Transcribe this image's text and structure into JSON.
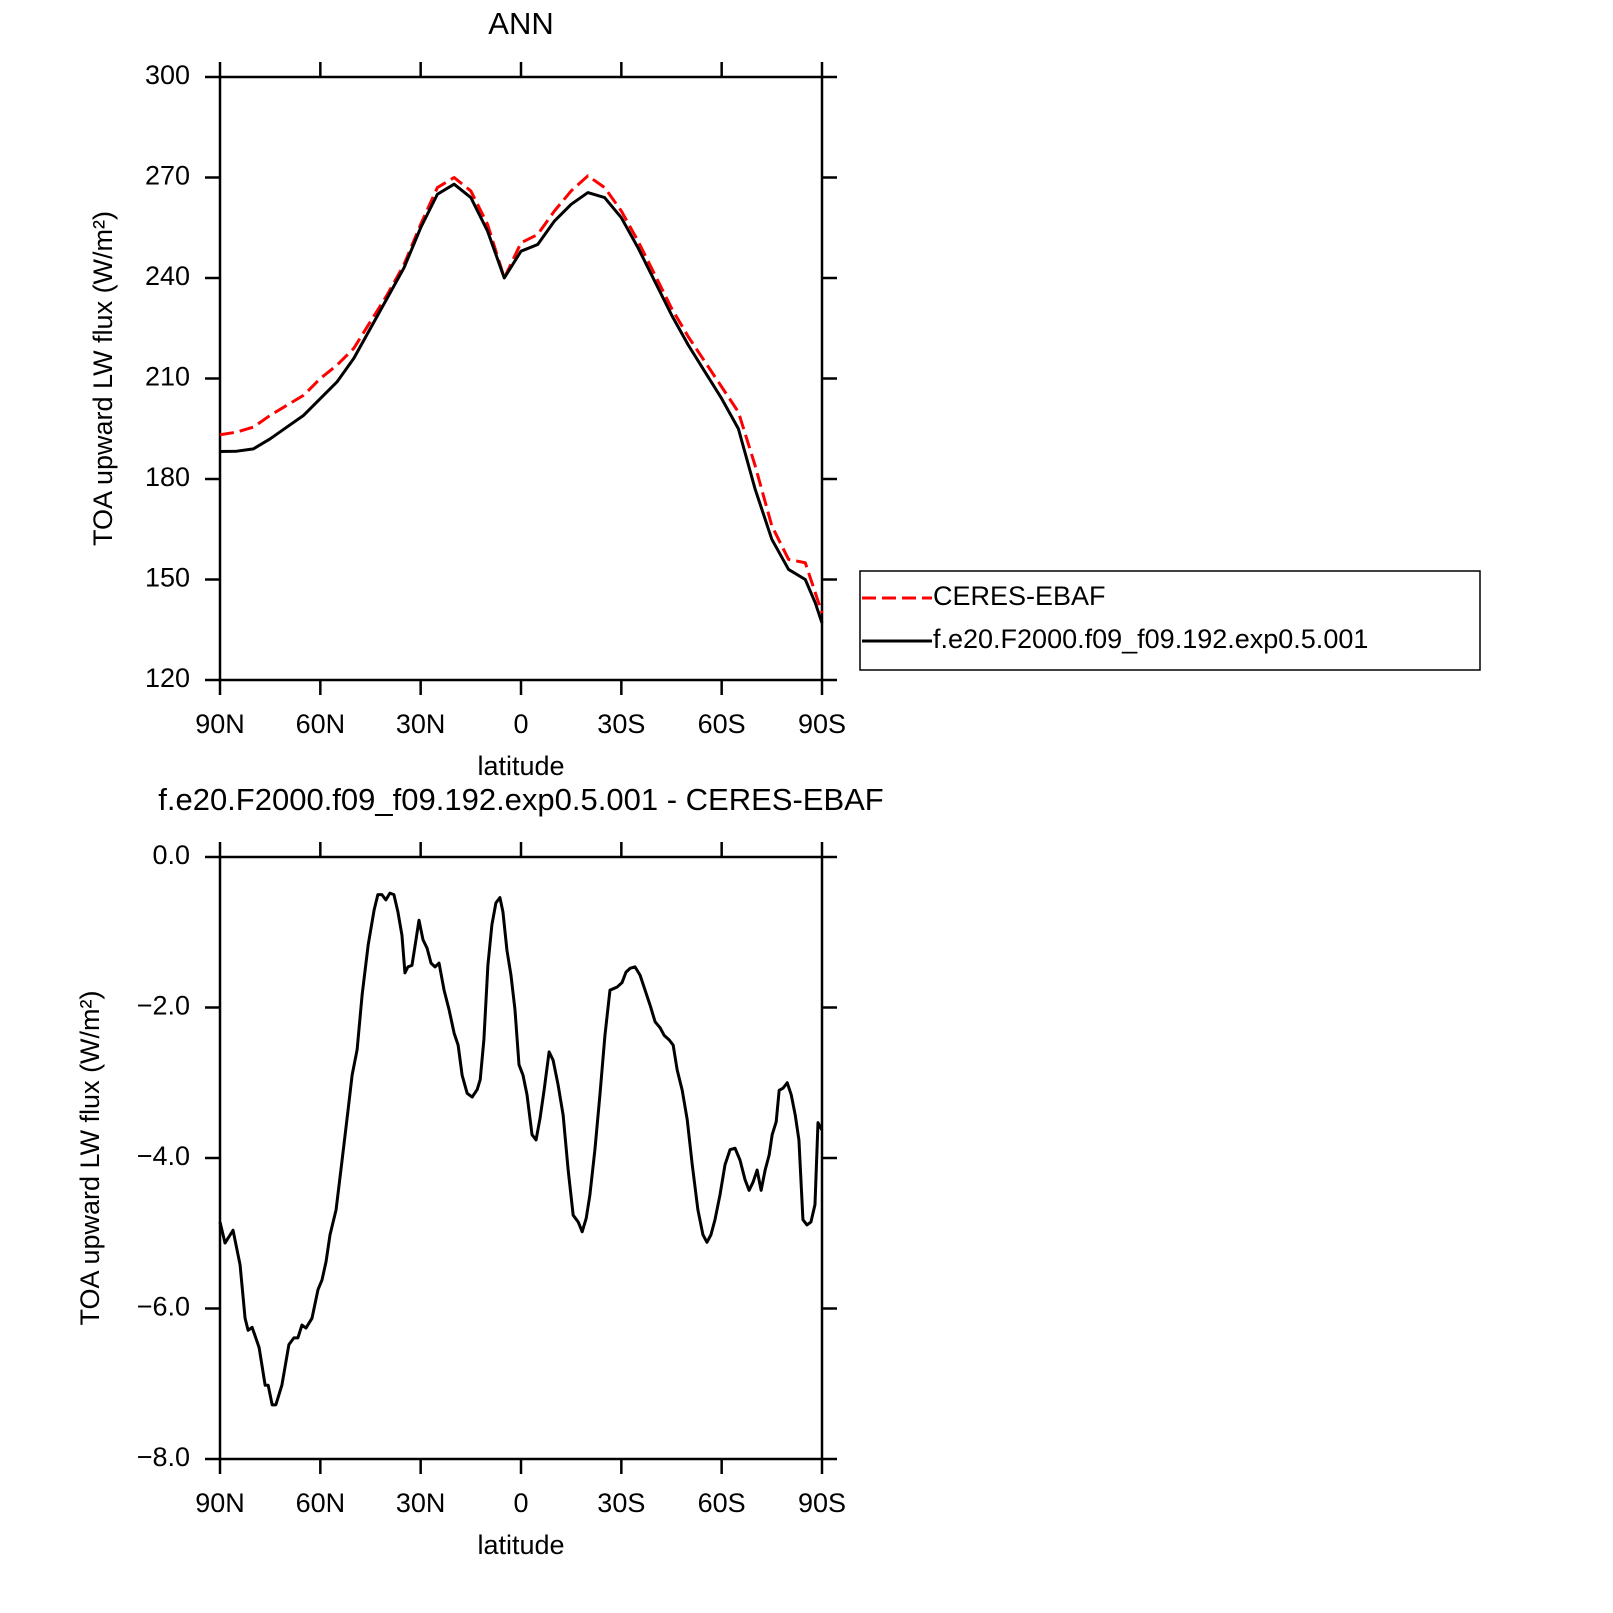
{
  "chart_data": [
    {
      "type": "line",
      "title": "ANN",
      "xlabel": "latitude",
      "ylabel": "TOA upward LW flux (W/m²)",
      "x": [
        90,
        85,
        80,
        75,
        70,
        65,
        60,
        55,
        50,
        45,
        40,
        35,
        30,
        25,
        20,
        15,
        10,
        5,
        0,
        -5,
        -10,
        -15,
        -20,
        -25,
        -30,
        -35,
        -40,
        -45,
        -50,
        -55,
        -60,
        -65,
        -70,
        -75,
        -80,
        -85,
        -88,
        -90
      ],
      "series": [
        {
          "name": "CERES-EBAF",
          "color": "#ff0000",
          "style": "dashed",
          "values": [
            193.2,
            194,
            195.5,
            199,
            202,
            205,
            210,
            214,
            219,
            227,
            235,
            244,
            256,
            267,
            270,
            266,
            256,
            240,
            250.5,
            253,
            260,
            266,
            270.5,
            267,
            260,
            251,
            241,
            231,
            222.5,
            215,
            207.5,
            200,
            184,
            166,
            156,
            155,
            146,
            140
          ]
        },
        {
          "name": "f.e20.F2000.f09_f09.192.exp0.5.001",
          "color": "#000000",
          "style": "solid",
          "values": [
            188.2,
            188.3,
            189,
            192,
            195.5,
            199,
            204,
            209,
            216,
            225,
            234,
            243,
            255,
            265,
            268,
            264,
            254,
            240,
            248,
            250,
            257,
            262,
            265.5,
            264,
            258,
            249,
            239,
            229,
            220,
            212,
            204,
            195,
            177,
            162,
            153,
            150,
            143,
            137
          ]
        }
      ],
      "xlim": [
        90,
        -90
      ],
      "xticks": [
        {
          "value": 90,
          "label": "90N"
        },
        {
          "value": 60,
          "label": "60N"
        },
        {
          "value": 30,
          "label": "30N"
        },
        0,
        {
          "value": -30,
          "label": "30S"
        },
        {
          "value": -60,
          "label": "60S"
        },
        {
          "value": -90,
          "label": "90S"
        }
      ],
      "ylim": [
        120,
        300
      ],
      "yticks": [
        120,
        150,
        180,
        210,
        240,
        270,
        300
      ],
      "legend": "right"
    },
    {
      "type": "line",
      "title": "f.e20.F2000.f09_f09.192.exp0.5.001 - CERES-EBAF",
      "xlabel": "latitude",
      "ylabel": "TOA upward LW flux (W/m²)",
      "x": [
        90,
        88.5,
        86.1,
        84,
        82.5,
        81.6,
        80.4,
        78.3,
        76.5,
        75.6,
        74.4,
        73.3,
        71.5,
        69.4,
        67.9,
        66.7,
        65.5,
        64.3,
        62.5,
        60.7,
        59.5,
        58.3,
        57.1,
        55.3,
        53.5,
        51.7,
        50.5,
        49,
        47.5,
        45.7,
        43.9,
        42.8,
        41.6,
        40.4,
        39.2,
        38,
        36.8,
        35.6,
        34.7,
        33.8,
        32.6,
        31.4,
        30.5,
        29.3,
        28.1,
        26.9,
        25.7,
        24.5,
        23,
        21.5,
        20,
        18.8,
        17.6,
        16.1,
        14.6,
        13.1,
        12.2,
        11.1,
        9.9,
        8.7,
        7.5,
        6.3,
        5.4,
        4.2,
        3,
        1.8,
        0.6,
        -0.6,
        -1.8,
        -3.3,
        -4.5,
        -5.7,
        -6.9,
        -8.4,
        -9.6,
        -11.1,
        -12.6,
        -14.1,
        -15.6,
        -17.1,
        -18.3,
        -19.5,
        -20.6,
        -22.1,
        -23.6,
        -25.1,
        -26.6,
        -28.7,
        -30.2,
        -31.4,
        -32.6,
        -34.1,
        -35.6,
        -37.1,
        -38.6,
        -40.1,
        -41.6,
        -42.8,
        -44.3,
        -45.5,
        -46.7,
        -48.2,
        -49.7,
        -51.2,
        -52.9,
        -54.4,
        -55.6,
        -56.8,
        -58,
        -59.5,
        -61,
        -62.5,
        -64,
        -65.5,
        -67,
        -68.2,
        -69.4,
        -70.6,
        -71.8,
        -73,
        -74.2,
        -75.1,
        -76.3,
        -77.2,
        -78.4,
        -79.6,
        -80.8,
        -82,
        -83.1,
        -84.3,
        -85.5,
        -86.7,
        -87.9,
        -88.8,
        -90
      ],
      "series": [
        {
          "color": "#000000",
          "style": "solid",
          "values": [
            -4.85,
            -5.13,
            -4.96,
            -5.42,
            -6.13,
            -6.29,
            -6.25,
            -6.52,
            -7.02,
            -7.02,
            -7.28,
            -7.28,
            -7.02,
            -6.48,
            -6.39,
            -6.39,
            -6.22,
            -6.26,
            -6.13,
            -5.75,
            -5.62,
            -5.38,
            -5.02,
            -4.69,
            -4.03,
            -3.36,
            -2.9,
            -2.56,
            -1.83,
            -1.17,
            -0.7,
            -0.5,
            -0.5,
            -0.57,
            -0.48,
            -0.5,
            -0.73,
            -1.04,
            -1.54,
            -1.46,
            -1.44,
            -1.1,
            -0.84,
            -1.1,
            -1.21,
            -1.41,
            -1.46,
            -1.41,
            -1.77,
            -2.03,
            -2.34,
            -2.5,
            -2.9,
            -3.14,
            -3.19,
            -3.09,
            -2.96,
            -2.43,
            -1.44,
            -0.9,
            -0.61,
            -0.54,
            -0.73,
            -1.24,
            -1.57,
            -2.03,
            -2.76,
            -2.9,
            -3.16,
            -3.69,
            -3.76,
            -3.47,
            -3.1,
            -2.59,
            -2.7,
            -3.03,
            -3.43,
            -4.16,
            -4.76,
            -4.85,
            -4.98,
            -4.8,
            -4.49,
            -3.89,
            -3.16,
            -2.37,
            -1.77,
            -1.73,
            -1.67,
            -1.53,
            -1.48,
            -1.46,
            -1.57,
            -1.77,
            -1.97,
            -2.19,
            -2.27,
            -2.37,
            -2.43,
            -2.5,
            -2.83,
            -3.1,
            -3.49,
            -4.09,
            -4.69,
            -5.02,
            -5.12,
            -5.02,
            -4.82,
            -4.49,
            -4.09,
            -3.89,
            -3.87,
            -4.03,
            -4.29,
            -4.43,
            -4.32,
            -4.16,
            -4.43,
            -4.16,
            -3.96,
            -3.69,
            -3.52,
            -3.1,
            -3.07,
            -3,
            -3.16,
            -3.43,
            -3.76,
            -4.82,
            -4.89,
            -4.85,
            -4.62,
            -3.53,
            -3.63
          ]
        }
      ],
      "xlim": [
        90,
        -90
      ],
      "xticks": [
        {
          "value": 90,
          "label": "90N"
        },
        {
          "value": 60,
          "label": "60N"
        },
        {
          "value": 30,
          "label": "30N"
        },
        0,
        {
          "value": -30,
          "label": "30S"
        },
        {
          "value": -60,
          "label": "60S"
        },
        {
          "value": -90,
          "label": "90S"
        }
      ],
      "ylim": [
        -8,
        0
      ],
      "yticks": [
        {
          "value": -8,
          "label": "−8.0"
        },
        {
          "value": -6,
          "label": "−6.0"
        },
        {
          "value": -4,
          "label": "−4.0"
        },
        {
          "value": -2,
          "label": "−2.0"
        },
        {
          "value": 0,
          "label": "0.0"
        }
      ]
    }
  ]
}
